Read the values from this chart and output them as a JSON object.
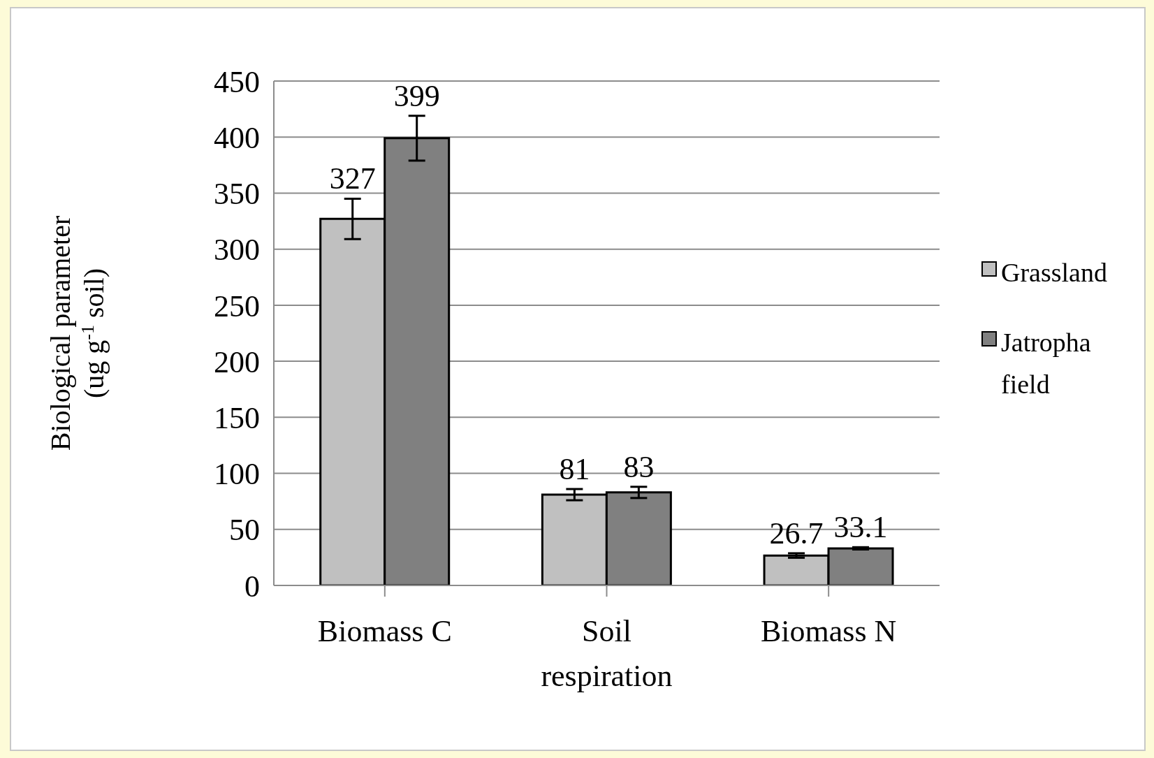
{
  "chart_data": {
    "type": "bar",
    "ylabel": "Biological parameter (ug g$^{-1}$ soil)",
    "categories": [
      "Biomass C",
      "Soil respiration",
      "Biomass N"
    ],
    "series": [
      {
        "name": "Grassland",
        "color": "#c0c0c0",
        "values": [
          327,
          81,
          26.7
        ],
        "errors": [
          18,
          5,
          2
        ]
      },
      {
        "name": "Jatropha field",
        "color": "#808080",
        "values": [
          399,
          83,
          33.1
        ],
        "errors": [
          20,
          5,
          1
        ]
      }
    ],
    "ylim": [
      0,
      450
    ],
    "yticks": [
      0,
      50,
      100,
      150,
      200,
      250,
      300,
      350,
      400,
      450
    ],
    "grid": "y",
    "legend": "right",
    "data_labels": true
  }
}
